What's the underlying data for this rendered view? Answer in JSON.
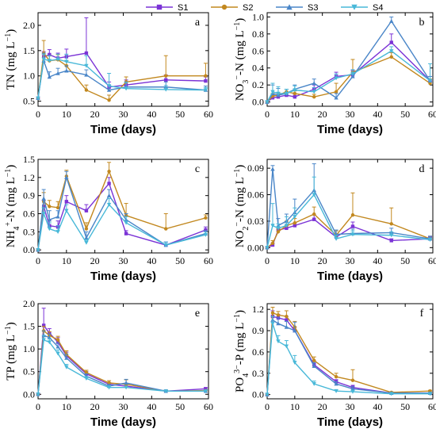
{
  "legend": {
    "placement": "top-center",
    "entries": [
      {
        "name": "S1",
        "color": "#7b33d6",
        "marker": "square"
      },
      {
        "name": "S2",
        "color": "#c2881f",
        "marker": "circle"
      },
      {
        "name": "S3",
        "color": "#4a86c8",
        "marker": "triangle-up"
      },
      {
        "name": "S4",
        "color": "#48b8d8",
        "marker": "triangle-down"
      }
    ]
  },
  "chart_data": [
    {
      "type": "line",
      "panel": "a",
      "ylabel": "TN (mg L⁻¹)",
      "xlabel": "Time (days)",
      "xlim": [
        0,
        60
      ],
      "ylim": [
        0.4,
        2.25
      ],
      "xticks": [
        0,
        10,
        20,
        30,
        40,
        50,
        60
      ],
      "yticks": [
        0.5,
        1.0,
        1.5,
        2.0
      ],
      "ytick_labels": [
        "0.5",
        "1.0",
        "1.5",
        "2.0"
      ],
      "x": [
        0,
        2,
        4,
        7,
        10,
        17,
        25,
        31,
        45,
        59
      ],
      "series": [
        {
          "name": "S1",
          "values": [
            0.56,
            1.38,
            1.42,
            1.35,
            1.38,
            1.45,
            0.78,
            0.82,
            0.92,
            0.9
          ],
          "errors": [
            0,
            0.1,
            0.1,
            0.1,
            0.15,
            0.7,
            0.1,
            0.1,
            0.1,
            0.08
          ]
        },
        {
          "name": "S2",
          "values": [
            0.56,
            1.45,
            1.3,
            1.32,
            1.2,
            0.72,
            0.52,
            0.88,
            1.0,
            1.0
          ],
          "errors": [
            0,
            0.25,
            0.1,
            0.1,
            0.1,
            0.1,
            0.1,
            0.1,
            0.4,
            0.25
          ]
        },
        {
          "name": "S3",
          "values": [
            0.56,
            1.3,
            0.98,
            1.05,
            1.1,
            1.02,
            0.72,
            0.78,
            0.78,
            0.72
          ],
          "errors": [
            0,
            0.15,
            0.1,
            0.1,
            0.1,
            0.1,
            0.1,
            0.1,
            0.1,
            0.08
          ]
        },
        {
          "name": "S4",
          "values": [
            0.56,
            1.33,
            1.3,
            1.33,
            1.28,
            1.2,
            0.8,
            0.75,
            0.73,
            0.72
          ],
          "errors": [
            0,
            0.1,
            0.1,
            0.1,
            0.15,
            0.2,
            0.25,
            0.12,
            0.08,
            0.05
          ]
        }
      ]
    },
    {
      "type": "line",
      "panel": "b",
      "ylabel": "NO₃⁻-N (mg L⁻¹)",
      "xlabel": "Time (days)",
      "xlim": [
        0,
        60
      ],
      "ylim": [
        -0.05,
        1.05
      ],
      "xticks": [
        0,
        10,
        20,
        30,
        40,
        50,
        60
      ],
      "yticks": [
        0,
        0.2,
        0.4,
        0.6,
        0.8,
        1.0
      ],
      "ytick_labels": [
        "0.0",
        "0.2",
        "0.4",
        "0.6",
        "0.8",
        "1.0"
      ],
      "x": [
        0,
        2,
        4,
        7,
        10,
        17,
        25,
        31,
        45,
        59
      ],
      "series": [
        {
          "name": "S1",
          "values": [
            0.0,
            0.05,
            0.06,
            0.08,
            0.06,
            0.15,
            0.3,
            0.32,
            0.7,
            0.25
          ],
          "errors": [
            0,
            0.03,
            0.03,
            0.03,
            0.03,
            0.05,
            0.05,
            0.05,
            0.1,
            0.05
          ]
        },
        {
          "name": "S2",
          "values": [
            0.0,
            0.07,
            0.08,
            0.12,
            0.1,
            0.06,
            0.12,
            0.35,
            0.53,
            0.22
          ],
          "errors": [
            0,
            0.03,
            0.03,
            0.03,
            0.03,
            0.03,
            0.1,
            0.15,
            0.05,
            0.05
          ]
        },
        {
          "name": "S3",
          "values": [
            0.0,
            0.1,
            0.08,
            0.1,
            0.15,
            0.22,
            0.05,
            0.3,
            0.95,
            0.25
          ],
          "errors": [
            0,
            0.1,
            0.08,
            0.05,
            0.05,
            0.05,
            0.05,
            0.05,
            0.05,
            0.05
          ]
        },
        {
          "name": "S4",
          "values": [
            0.0,
            0.12,
            0.1,
            0.1,
            0.14,
            0.12,
            0.28,
            0.33,
            0.6,
            0.25
          ],
          "errors": [
            0,
            0.1,
            0.08,
            0.05,
            0.05,
            0.05,
            0.05,
            0.05,
            0.05,
            0.2
          ]
        }
      ]
    },
    {
      "type": "line",
      "panel": "c",
      "ylabel": "NH₄⁺-N (mg L⁻¹)",
      "xlabel": "Time (days)",
      "xlim": [
        0,
        60
      ],
      "ylim": [
        -0.05,
        1.5
      ],
      "xticks": [
        0,
        10,
        20,
        30,
        40,
        50,
        60
      ],
      "yticks": [
        0,
        0.3,
        0.6,
        0.9,
        1.2,
        1.5
      ],
      "ytick_labels": [
        "0.0",
        "0.3",
        "0.6",
        "0.9",
        "1.2",
        "1.5"
      ],
      "x": [
        0,
        2,
        4,
        7,
        10,
        17,
        25,
        31,
        45,
        59
      ],
      "series": [
        {
          "name": "S1",
          "values": [
            0.0,
            0.72,
            0.4,
            0.38,
            0.8,
            0.65,
            1.1,
            0.27,
            0.08,
            0.33
          ],
          "errors": [
            0,
            0.1,
            0.1,
            0.1,
            0.1,
            0.1,
            0.1,
            0.05,
            0.05,
            0.05
          ]
        },
        {
          "name": "S2",
          "values": [
            0.0,
            0.8,
            0.72,
            0.7,
            1.22,
            0.35,
            1.3,
            0.57,
            0.35,
            0.53
          ],
          "errors": [
            0,
            0.15,
            0.1,
            0.1,
            0.1,
            0.1,
            0.15,
            0.2,
            0.25,
            0.05
          ]
        },
        {
          "name": "S3",
          "values": [
            0.0,
            0.85,
            0.5,
            0.55,
            1.2,
            0.2,
            0.9,
            0.5,
            0.08,
            0.27
          ],
          "errors": [
            0,
            0.15,
            0.15,
            0.1,
            0.1,
            0.1,
            0.1,
            0.1,
            0.05,
            0.05
          ]
        },
        {
          "name": "S4",
          "values": [
            0.0,
            0.6,
            0.35,
            0.3,
            0.65,
            0.12,
            0.75,
            0.45,
            0.08,
            0.25
          ],
          "errors": [
            0,
            0.1,
            0.1,
            0.1,
            0.1,
            0.05,
            0.1,
            0.1,
            0.05,
            0.05
          ]
        }
      ]
    },
    {
      "type": "line",
      "panel": "d",
      "ylabel": "NO₂⁻-N (mg L⁻¹)",
      "xlabel": "Time (days)",
      "xlim": [
        0,
        60
      ],
      "ylim": [
        -0.006,
        0.1
      ],
      "xticks": [
        0,
        10,
        20,
        30,
        40,
        50,
        60
      ],
      "yticks": [
        0,
        0.03,
        0.06,
        0.09
      ],
      "ytick_labels": [
        "0.00",
        "0.03",
        "0.06",
        "0.09"
      ],
      "x": [
        0,
        2,
        4,
        7,
        10,
        17,
        25,
        31,
        45,
        59
      ],
      "series": [
        {
          "name": "S1",
          "values": [
            0.0,
            0.003,
            0.02,
            0.022,
            0.025,
            0.032,
            0.012,
            0.024,
            0.008,
            0.01
          ],
          "errors": [
            0,
            0.002,
            0.003,
            0.003,
            0.003,
            0.005,
            0.003,
            0.005,
            0.002,
            0.002
          ]
        },
        {
          "name": "S2",
          "values": [
            0.0,
            0.005,
            0.018,
            0.025,
            0.028,
            0.038,
            0.014,
            0.037,
            0.027,
            0.01
          ],
          "errors": [
            0,
            0.003,
            0.003,
            0.005,
            0.005,
            0.008,
            0.005,
            0.025,
            0.018,
            0.003
          ]
        },
        {
          "name": "S3",
          "values": [
            0.0,
            0.089,
            0.025,
            0.03,
            0.04,
            0.065,
            0.015,
            0.016,
            0.017,
            0.01
          ],
          "errors": [
            0,
            0.004,
            0.008,
            0.008,
            0.015,
            0.03,
            0.005,
            0.005,
            0.005,
            0.003
          ]
        },
        {
          "name": "S4",
          "values": [
            0.0,
            0.025,
            0.022,
            0.025,
            0.035,
            0.06,
            0.01,
            0.015,
            0.014,
            0.009
          ],
          "errors": [
            0,
            0.025,
            0.005,
            0.01,
            0.01,
            0.02,
            0.004,
            0.004,
            0.004,
            0.002
          ]
        }
      ]
    },
    {
      "type": "line",
      "panel": "e",
      "ylabel": "TP (mg L⁻¹)",
      "xlabel": "Time (days)",
      "xlim": [
        0,
        60
      ],
      "ylim": [
        -0.1,
        2.0
      ],
      "xticks": [
        0,
        10,
        20,
        30,
        40,
        50,
        60
      ],
      "yticks": [
        0,
        0.5,
        1.0,
        1.5,
        2.0
      ],
      "ytick_labels": [
        "0.0",
        "0.5",
        "1.0",
        "1.5",
        "2.0"
      ],
      "x": [
        0,
        2,
        4,
        7,
        10,
        17,
        25,
        31,
        45,
        59
      ],
      "series": [
        {
          "name": "S1",
          "values": [
            0.0,
            1.52,
            1.35,
            1.15,
            0.85,
            0.45,
            0.22,
            0.18,
            0.07,
            0.12
          ],
          "errors": [
            0,
            0.38,
            0.1,
            0.1,
            0.08,
            0.05,
            0.04,
            0.04,
            0.02,
            0.03
          ]
        },
        {
          "name": "S2",
          "values": [
            0.0,
            1.4,
            1.3,
            1.2,
            0.88,
            0.48,
            0.25,
            0.22,
            0.07,
            0.08
          ],
          "errors": [
            0,
            0.1,
            0.08,
            0.08,
            0.08,
            0.05,
            0.05,
            0.1,
            0.02,
            0.02
          ]
        },
        {
          "name": "S3",
          "values": [
            0.0,
            1.3,
            1.25,
            1.05,
            0.8,
            0.4,
            0.18,
            0.25,
            0.07,
            0.07
          ],
          "errors": [
            0,
            0.1,
            0.08,
            0.08,
            0.08,
            0.05,
            0.04,
            0.08,
            0.02,
            0.02
          ]
        },
        {
          "name": "S4",
          "values": [
            0.0,
            1.2,
            1.15,
            0.9,
            0.6,
            0.35,
            0.15,
            0.15,
            0.07,
            0.07
          ],
          "errors": [
            0,
            0.1,
            0.08,
            0.08,
            0.06,
            0.04,
            0.04,
            0.03,
            0.02,
            0.02
          ]
        }
      ]
    },
    {
      "type": "line",
      "panel": "f",
      "ylabel": "PO₄³⁻-P (mg L⁻¹)",
      "xlabel": "Time (days)",
      "xlim": [
        0,
        60
      ],
      "ylim": [
        -0.06,
        1.28
      ],
      "xticks": [
        0,
        10,
        20,
        30,
        40,
        50,
        60
      ],
      "yticks": [
        0,
        0.3,
        0.6,
        0.9,
        1.2
      ],
      "ytick_labels": [
        "0.0",
        "0.3",
        "0.6",
        "0.9",
        "1.2"
      ],
      "x": [
        0,
        2,
        4,
        7,
        10,
        17,
        25,
        31,
        45,
        59
      ],
      "series": [
        {
          "name": "S1",
          "values": [
            0.0,
            1.1,
            1.08,
            1.05,
            0.9,
            0.42,
            0.18,
            0.1,
            0.02,
            0.02
          ],
          "errors": [
            0,
            0.08,
            0.05,
            0.05,
            0.05,
            0.05,
            0.03,
            0.03,
            0.01,
            0.01
          ]
        },
        {
          "name": "S2",
          "values": [
            0.0,
            1.15,
            1.12,
            1.1,
            0.95,
            0.48,
            0.25,
            0.2,
            0.03,
            0.05
          ],
          "errors": [
            0,
            0.08,
            0.05,
            0.08,
            0.08,
            0.05,
            0.05,
            0.15,
            0.01,
            0.01
          ]
        },
        {
          "name": "S3",
          "values": [
            0.0,
            1.05,
            1.0,
            0.95,
            0.9,
            0.4,
            0.15,
            0.08,
            0.02,
            0.02
          ],
          "errors": [
            0,
            0.05,
            0.08,
            0.08,
            0.12,
            0.05,
            0.03,
            0.03,
            0.01,
            0.01
          ]
        },
        {
          "name": "S4",
          "values": [
            0.0,
            1.0,
            0.75,
            0.68,
            0.45,
            0.15,
            0.05,
            0.04,
            0.01,
            0.01
          ],
          "errors": [
            0,
            0.1,
            0.08,
            0.08,
            0.1,
            0.04,
            0.02,
            0.02,
            0.01,
            0.01
          ]
        }
      ]
    }
  ]
}
